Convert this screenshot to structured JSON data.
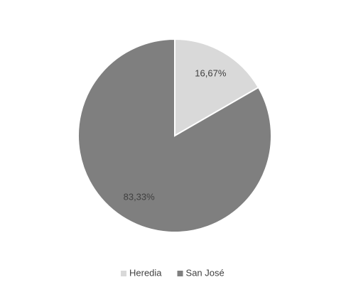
{
  "chart_data": {
    "type": "pie",
    "categories": [
      "Heredia",
      "San José"
    ],
    "values": [
      16.67,
      83.33
    ],
    "value_labels": [
      "16,67%",
      "83,33%"
    ],
    "colors": [
      "#d9d9d9",
      "#7f7f7f"
    ],
    "legend": "bottom"
  }
}
